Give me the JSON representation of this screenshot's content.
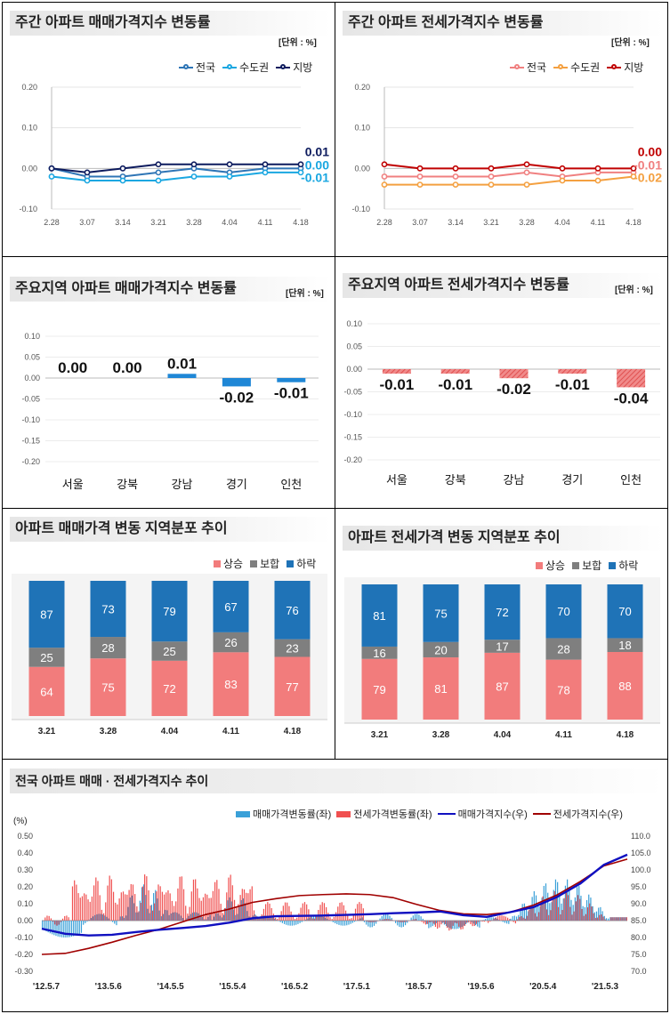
{
  "panels": {
    "p1": {
      "title": "주간 아파트 매매가격지수 변동률",
      "unit": "[단위 : %]"
    },
    "p2": {
      "title": "주간 아파트 전세가격지수 변동률",
      "unit": "[단위 : %]"
    },
    "p3": {
      "title": "주요지역 아파트 매매가격지수 변동률",
      "unit": "[단위 : %]"
    },
    "p4": {
      "title": "주요지역 아파트 전세가격지수 변동률",
      "unit": "[단위 : %]"
    },
    "p5": {
      "title": "아파트 매매가격 변동 지역분포 추이"
    },
    "p6": {
      "title": "아파트 전세가격 변동 지역분포 추이"
    },
    "p7": {
      "title": "전국 아파트 매매 · 전세가격지수 추이",
      "unit": "(%)"
    }
  },
  "chart_data": [
    {
      "id": "weekly-sale",
      "type": "line",
      "x": [
        "2.28",
        "3.07",
        "3.14",
        "3.21",
        "3.28",
        "4.04",
        "4.11",
        "4.18"
      ],
      "ylim": [
        -0.1,
        0.2
      ],
      "yticks": [
        "0.20",
        "0.10",
        "0.00",
        "-0.10"
      ],
      "series": [
        {
          "name": "전국",
          "color": "#2e75b6",
          "values": [
            0.0,
            -0.02,
            -0.02,
            -0.01,
            0.0,
            -0.01,
            0.0,
            0.0
          ]
        },
        {
          "name": "수도권",
          "color": "#1aa7e1",
          "values": [
            -0.02,
            -0.03,
            -0.03,
            -0.03,
            -0.02,
            -0.02,
            -0.01,
            -0.01
          ]
        },
        {
          "name": "지방",
          "color": "#0d1b5e",
          "values": [
            0.0,
            -0.01,
            0.0,
            0.01,
            0.01,
            0.01,
            0.01,
            0.01
          ]
        }
      ],
      "end_labels": [
        "0.01",
        "0.00",
        "-0.01"
      ]
    },
    {
      "id": "weekly-jeonse",
      "type": "line",
      "x": [
        "2.28",
        "3.07",
        "3.14",
        "3.21",
        "3.28",
        "4.04",
        "4.11",
        "4.18"
      ],
      "ylim": [
        -0.1,
        0.2
      ],
      "yticks": [
        "0.20",
        "0.10",
        "0.00",
        "-0.10"
      ],
      "series": [
        {
          "name": "전국",
          "color": "#f08080",
          "values": [
            -0.02,
            -0.02,
            -0.02,
            -0.02,
            -0.01,
            -0.02,
            -0.01,
            -0.01
          ]
        },
        {
          "name": "수도권",
          "color": "#f4a040",
          "values": [
            -0.04,
            -0.04,
            -0.04,
            -0.04,
            -0.04,
            -0.03,
            -0.03,
            -0.02
          ]
        },
        {
          "name": "지방",
          "color": "#c00000",
          "values": [
            0.01,
            0.0,
            0.0,
            0.0,
            0.01,
            0.0,
            0.0,
            0.0
          ]
        }
      ],
      "end_labels": [
        "0.00",
        "-0.01",
        "-0.02"
      ]
    },
    {
      "id": "region-sale",
      "type": "bar",
      "categories": [
        "서울",
        "강북",
        "강남",
        "경기",
        "인천"
      ],
      "values": [
        0.0,
        0.0,
        0.01,
        -0.02,
        -0.01
      ],
      "labels": [
        "0.00",
        "0.00",
        "0.01",
        "-0.02",
        "-0.01"
      ],
      "ylim": [
        -0.2,
        0.1
      ],
      "yticks": [
        "0.10",
        "0.05",
        "0.00",
        "-0.05",
        "-0.10",
        "-0.15",
        "-0.20"
      ]
    },
    {
      "id": "region-jeonse",
      "type": "bar",
      "categories": [
        "서울",
        "강북",
        "강남",
        "경기",
        "인천"
      ],
      "values": [
        -0.01,
        -0.01,
        -0.02,
        -0.01,
        -0.04
      ],
      "labels": [
        "-0.01",
        "-0.01",
        "-0.02",
        "-0.01",
        "-0.04"
      ],
      "ylim": [
        -0.2,
        0.1
      ],
      "yticks": [
        "0.10",
        "0.05",
        "0.00",
        "-0.05",
        "-0.10",
        "-0.15",
        "-0.20"
      ]
    },
    {
      "id": "dist-sale",
      "type": "bar",
      "stacked": true,
      "categories": [
        "3.21",
        "3.28",
        "4.04",
        "4.11",
        "4.18"
      ],
      "series": [
        {
          "name": "상승",
          "color": "#f27c7c",
          "values": [
            64,
            75,
            72,
            83,
            77
          ]
        },
        {
          "name": "보합",
          "color": "#7f7f7f",
          "values": [
            25,
            28,
            25,
            26,
            23
          ]
        },
        {
          "name": "하락",
          "color": "#1f73b7",
          "values": [
            87,
            73,
            79,
            67,
            76
          ]
        }
      ]
    },
    {
      "id": "dist-jeonse",
      "type": "bar",
      "stacked": true,
      "categories": [
        "3.21",
        "3.28",
        "4.04",
        "4.11",
        "4.18"
      ],
      "series": [
        {
          "name": "상승",
          "color": "#f27c7c",
          "values": [
            79,
            81,
            87,
            78,
            88
          ]
        },
        {
          "name": "보합",
          "color": "#7f7f7f",
          "values": [
            16,
            20,
            17,
            28,
            18
          ]
        },
        {
          "name": "하락",
          "color": "#1f73b7",
          "values": [
            81,
            75,
            72,
            70,
            70
          ]
        }
      ]
    },
    {
      "id": "national-trend",
      "type": "line",
      "x_labels": [
        "'12.5.7",
        "'13.5.6",
        "'14.5.5",
        "'15.5.4",
        "'16.5.2",
        "'17.5.1",
        "'18.5.7",
        "'19.5.6",
        "'20.5.4",
        "'21.5.3"
      ],
      "ylim_left": [
        -0.3,
        0.5
      ],
      "ylim_right": [
        70.0,
        110.0
      ],
      "yticks_left": [
        "0.50",
        "0.40",
        "0.30",
        "0.20",
        "0.10",
        "0.00",
        "-0.10",
        "-0.20",
        "-0.30"
      ],
      "yticks_right": [
        "110.0",
        "105.0",
        "100.0",
        "95.0",
        "90.0",
        "85.0",
        "80.0",
        "75.0",
        "70.0"
      ],
      "series": [
        {
          "name": "매매가격변동률(좌)",
          "color": "#3aa0d8",
          "kind": "bar"
        },
        {
          "name": "전세가격변동률(좌)",
          "color": "#f05050",
          "kind": "bar"
        },
        {
          "name": "매매가격지수(우)",
          "color": "#1010c0",
          "kind": "line",
          "x": [
            0,
            0.04,
            0.08,
            0.12,
            0.16,
            0.2,
            0.24,
            0.28,
            0.32,
            0.36,
            0.4,
            0.44,
            0.48,
            0.52,
            0.56,
            0.6,
            0.64,
            0.68,
            0.72,
            0.76,
            0.8,
            0.84,
            0.88,
            0.92,
            0.96,
            1.0
          ],
          "values": [
            82.6,
            81.1,
            80.6,
            80.8,
            81.6,
            82.3,
            82.8,
            83.4,
            84.4,
            85.7,
            86.3,
            86.4,
            86.5,
            86.7,
            86.9,
            87.2,
            87.4,
            87.7,
            86.6,
            86.1,
            87.5,
            89.0,
            92.0,
            96.0,
            101.5,
            104.5
          ]
        },
        {
          "name": "전세가격지수(우)",
          "color": "#a00000",
          "kind": "line",
          "x": [
            0,
            0.04,
            0.08,
            0.12,
            0.16,
            0.2,
            0.24,
            0.28,
            0.32,
            0.36,
            0.4,
            0.44,
            0.48,
            0.52,
            0.56,
            0.6,
            0.64,
            0.68,
            0.72,
            0.76,
            0.8,
            0.84,
            0.88,
            0.92,
            0.96,
            1.0
          ],
          "values": [
            75.0,
            75.3,
            76.8,
            78.6,
            80.6,
            82.4,
            84.6,
            86.8,
            88.4,
            90.4,
            91.5,
            92.4,
            92.7,
            92.9,
            92.7,
            91.8,
            89.8,
            88.0,
            87.0,
            86.8,
            87.5,
            89.6,
            92.6,
            96.6,
            101.2,
            103.2
          ]
        }
      ]
    }
  ]
}
